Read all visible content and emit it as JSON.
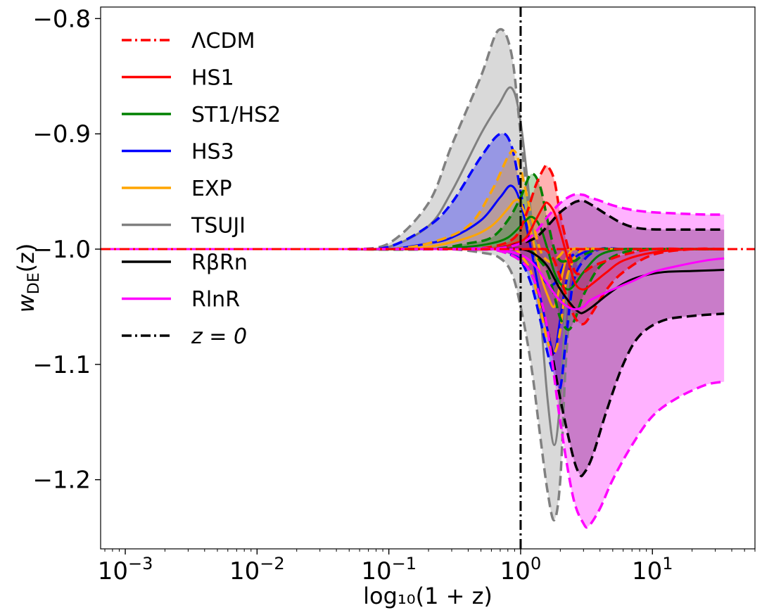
{
  "chart_data": {
    "type": "line",
    "xscale": "log",
    "xlabel": "log₁₀(1 + z)",
    "ylabel": "w_DE(z)",
    "ylabel_main": "w",
    "ylabel_sub": "DE",
    "ylabel_arg": "(z)",
    "xlim": [
      0.00065,
      60
    ],
    "ylim": [
      -1.26,
      -0.79
    ],
    "xticks": [
      {
        "value": 0.001,
        "base": "10",
        "exp": "−3"
      },
      {
        "value": 0.01,
        "base": "10",
        "exp": "−2"
      },
      {
        "value": 0.1,
        "base": "10",
        "exp": "−1"
      },
      {
        "value": 1,
        "base": "10",
        "exp": "0"
      },
      {
        "value": 10,
        "base": "10",
        "exp": "1"
      }
    ],
    "yticks": [
      {
        "value": -0.8,
        "label": "−0.8"
      },
      {
        "value": -0.9,
        "label": "−0.9"
      },
      {
        "value": -1.0,
        "label": "−1.0"
      },
      {
        "value": -1.1,
        "label": "−1.1"
      },
      {
        "value": -1.2,
        "label": "−1.2"
      }
    ],
    "legend": [
      {
        "label": "ΛCDM",
        "color": "#ff0000",
        "style": "dashdot"
      },
      {
        "label": "HS1",
        "color": "#ff0000",
        "style": "solid"
      },
      {
        "label": "ST1/HS2",
        "color": "#008000",
        "style": "solid"
      },
      {
        "label": "HS3",
        "color": "#0000ff",
        "style": "solid"
      },
      {
        "label": "EXP",
        "color": "#ffa500",
        "style": "solid"
      },
      {
        "label": "TSUJI",
        "color": "#808080",
        "style": "solid"
      },
      {
        "label": "RβRn",
        "color": "#000000",
        "style": "solid"
      },
      {
        "label": "RlnR",
        "color": "#ff00ff",
        "style": "solid"
      },
      {
        "label": "z = 0",
        "color": "#000000",
        "style": "dashdot"
      }
    ],
    "vertical_line": {
      "x": 1,
      "label": "z = 0"
    },
    "lcdm_value": -1.0,
    "series": [
      {
        "name": "TSUJI",
        "color": "#808080",
        "fill_opacity": 0.3,
        "x": [
          0.05,
          0.1,
          0.2,
          0.3,
          0.5,
          0.68,
          0.85,
          1.0,
          1.2,
          1.4,
          1.6,
          1.8,
          2.0,
          2.2,
          2.5,
          3.0,
          4.0,
          6.0,
          10,
          20,
          35
        ],
        "upper": [
          -1.0,
          -0.995,
          -0.96,
          -0.91,
          -0.85,
          -0.81,
          -0.83,
          -0.9,
          -0.98,
          -1.0,
          -1.0,
          -1.0,
          -1.0,
          -1.0,
          -1.0,
          -1.0,
          -1.0,
          -1.0,
          -1.0,
          -1.0,
          -1.0
        ],
        "central": [
          -1.0,
          -0.998,
          -0.98,
          -0.95,
          -0.9,
          -0.875,
          -0.86,
          -0.89,
          -0.97,
          -1.05,
          -1.13,
          -1.17,
          -1.13,
          -1.05,
          -1.01,
          -1.0,
          -1.0,
          -1.0,
          -1.0,
          -1.0,
          -1.0
        ],
        "lower": [
          -1.0,
          -1.0,
          -1.0,
          -1.0,
          -1.003,
          -1.007,
          -1.02,
          -1.05,
          -1.1,
          -1.16,
          -1.21,
          -1.235,
          -1.2,
          -1.1,
          -1.03,
          -1.005,
          -1.0,
          -1.0,
          -1.0,
          -1.0,
          -1.0
        ]
      },
      {
        "name": "HS3",
        "color": "#0000ff",
        "fill_opacity": 0.3,
        "x": [
          0.05,
          0.1,
          0.2,
          0.3,
          0.5,
          0.7,
          0.85,
          1.0,
          1.2,
          1.4,
          1.6,
          1.8,
          2.0,
          2.2,
          2.5,
          3.0,
          4.0,
          6.0,
          10,
          20,
          35
        ],
        "upper": [
          -1.0,
          -0.998,
          -0.98,
          -0.96,
          -0.92,
          -0.9,
          -0.91,
          -0.95,
          -1.0,
          -1.02,
          -1.03,
          -1.03,
          -1.02,
          -1.01,
          -1.005,
          -1.0,
          -1.0,
          -1.0,
          -1.0,
          -1.0,
          -1.0
        ],
        "central": [
          -1.0,
          -1.0,
          -0.995,
          -0.99,
          -0.975,
          -0.955,
          -0.945,
          -0.96,
          -1.0,
          -1.04,
          -1.07,
          -1.09,
          -1.06,
          -1.03,
          -1.01,
          -1.003,
          -1.0,
          -1.0,
          -1.0,
          -1.0,
          -1.0
        ],
        "lower": [
          -1.0,
          -1.0,
          -1.0,
          -1.0,
          -1.0,
          -1.0,
          -1.005,
          -1.01,
          -1.03,
          -1.06,
          -1.09,
          -1.11,
          -1.12,
          -1.08,
          -1.03,
          -1.01,
          -1.0,
          -1.0,
          -1.0,
          -1.0,
          -1.0
        ]
      },
      {
        "name": "EXP",
        "color": "#ffa500",
        "fill_opacity": 0.3,
        "x": [
          0.05,
          0.1,
          0.2,
          0.4,
          0.6,
          0.8,
          0.9,
          1.0,
          1.2,
          1.4,
          1.6,
          1.8,
          2.0,
          2.2,
          2.5,
          3.0,
          4.0,
          6.0,
          10,
          20,
          35
        ],
        "upper": [
          -1.0,
          -1.0,
          -0.995,
          -0.98,
          -0.95,
          -0.92,
          -0.915,
          -0.93,
          -0.97,
          -1.0,
          -1.01,
          -1.01,
          -1.005,
          -1.0,
          -1.0,
          -1.0,
          -1.0,
          -1.0,
          -1.0,
          -1.0,
          -1.0
        ],
        "central": [
          -1.0,
          -1.0,
          -0.998,
          -0.99,
          -0.98,
          -0.965,
          -0.958,
          -0.96,
          -0.985,
          -1.02,
          -1.04,
          -1.05,
          -1.03,
          -1.01,
          -1.0,
          -1.0,
          -1.0,
          -1.0,
          -1.0,
          -1.0,
          -1.0
        ],
        "lower": [
          -1.0,
          -1.0,
          -1.0,
          -1.0,
          -1.0,
          -1.0,
          -1.0,
          -1.005,
          -1.02,
          -1.05,
          -1.08,
          -1.09,
          -1.07,
          -1.03,
          -1.01,
          -1.0,
          -1.0,
          -1.0,
          -1.0,
          -1.0,
          -1.0
        ]
      },
      {
        "name": "ST1/HS2",
        "color": "#008000",
        "fill_opacity": 0.3,
        "x": [
          0.05,
          0.2,
          0.4,
          0.6,
          0.8,
          1.0,
          1.2,
          1.4,
          1.6,
          1.8,
          2.0,
          2.3,
          2.6,
          3.0,
          4.0,
          6.0,
          10,
          20,
          35
        ],
        "upper": [
          -1.0,
          -1.0,
          -0.995,
          -0.99,
          -0.975,
          -0.955,
          -0.935,
          -0.945,
          -0.975,
          -1.0,
          -1.01,
          -1.01,
          -1.01,
          -1.005,
          -1.0,
          -1.0,
          -1.0,
          -1.0,
          -1.0
        ],
        "central": [
          -1.0,
          -1.0,
          -0.998,
          -0.995,
          -0.99,
          -0.98,
          -0.972,
          -0.98,
          -1.0,
          -1.02,
          -1.03,
          -1.035,
          -1.03,
          -1.02,
          -1.005,
          -1.0,
          -1.0,
          -1.0,
          -1.0
        ],
        "lower": [
          -1.0,
          -1.0,
          -1.0,
          -1.0,
          -1.0,
          -1.0,
          -1.002,
          -1.01,
          -1.02,
          -1.04,
          -1.06,
          -1.07,
          -1.06,
          -1.04,
          -1.015,
          -1.003,
          -1.0,
          -1.0,
          -1.0
        ]
      },
      {
        "name": "HS1",
        "color": "#ff0000",
        "fill_opacity": 0.3,
        "x": [
          0.05,
          0.3,
          0.6,
          0.9,
          1.1,
          1.3,
          1.5,
          1.6,
          1.8,
          2.0,
          2.3,
          2.6,
          3.0,
          3.5,
          4.5,
          6.0,
          10,
          20,
          35
        ],
        "upper": [
          -1.0,
          -1.0,
          -0.998,
          -0.99,
          -0.97,
          -0.945,
          -0.93,
          -0.928,
          -0.94,
          -0.97,
          -1.0,
          -1.02,
          -1.02,
          -1.015,
          -1.01,
          -1.005,
          -1.0,
          -1.0,
          -1.0
        ],
        "central": [
          -1.0,
          -1.0,
          -1.0,
          -0.995,
          -0.99,
          -0.975,
          -0.962,
          -0.96,
          -0.968,
          -0.985,
          -1.01,
          -1.03,
          -1.035,
          -1.03,
          -1.02,
          -1.01,
          -1.003,
          -1.0,
          -1.0
        ],
        "lower": [
          -1.0,
          -1.0,
          -1.0,
          -1.0,
          -1.0,
          -1.0,
          -1.0,
          -1.002,
          -1.01,
          -1.025,
          -1.045,
          -1.06,
          -1.065,
          -1.055,
          -1.035,
          -1.02,
          -1.005,
          -1.0,
          -1.0
        ]
      },
      {
        "name": "RβRn",
        "color": "#000000",
        "fill_opacity": 0.3,
        "x": [
          0.05,
          0.3,
          0.6,
          1.0,
          1.3,
          1.6,
          2.0,
          2.5,
          2.8,
          3.0,
          3.5,
          4.5,
          6.0,
          8.0,
          12,
          20,
          35
        ],
        "upper": [
          -1.0,
          -1.0,
          -1.0,
          -0.995,
          -0.99,
          -0.98,
          -0.968,
          -0.96,
          -0.958,
          -0.958,
          -0.962,
          -0.97,
          -0.978,
          -0.982,
          -0.983,
          -0.983,
          -0.983
        ],
        "central": [
          -1.0,
          -1.0,
          -1.0,
          -1.0,
          -1.005,
          -1.015,
          -1.035,
          -1.05,
          -1.055,
          -1.055,
          -1.05,
          -1.04,
          -1.03,
          -1.024,
          -1.02,
          -1.019,
          -1.018
        ],
        "lower": [
          -1.0,
          -1.0,
          -1.0,
          -1.01,
          -1.03,
          -1.07,
          -1.13,
          -1.18,
          -1.195,
          -1.195,
          -1.18,
          -1.14,
          -1.1,
          -1.075,
          -1.062,
          -1.058,
          -1.056
        ]
      },
      {
        "name": "RlnR",
        "color": "#ff00ff",
        "fill_opacity": 0.3,
        "x": [
          0.05,
          0.3,
          0.6,
          1.0,
          1.3,
          1.6,
          2.0,
          2.5,
          3.0,
          3.3,
          4.0,
          5.0,
          7.0,
          10,
          15,
          25,
          35
        ],
        "upper": [
          -1.0,
          -1.0,
          -1.0,
          -0.995,
          -0.985,
          -0.972,
          -0.96,
          -0.953,
          -0.953,
          -0.955,
          -0.958,
          -0.962,
          -0.966,
          -0.968,
          -0.969,
          -0.97,
          -0.97
        ],
        "central": [
          -1.0,
          -1.0,
          -1.0,
          -1.005,
          -1.015,
          -1.03,
          -1.045,
          -1.052,
          -1.05,
          -1.045,
          -1.04,
          -1.035,
          -1.028,
          -1.02,
          -1.015,
          -1.01,
          -1.008
        ],
        "lower": [
          -1.0,
          -1.0,
          -1.0,
          -1.01,
          -1.03,
          -1.07,
          -1.15,
          -1.215,
          -1.238,
          -1.24,
          -1.225,
          -1.2,
          -1.17,
          -1.145,
          -1.13,
          -1.118,
          -1.115
        ]
      }
    ]
  }
}
